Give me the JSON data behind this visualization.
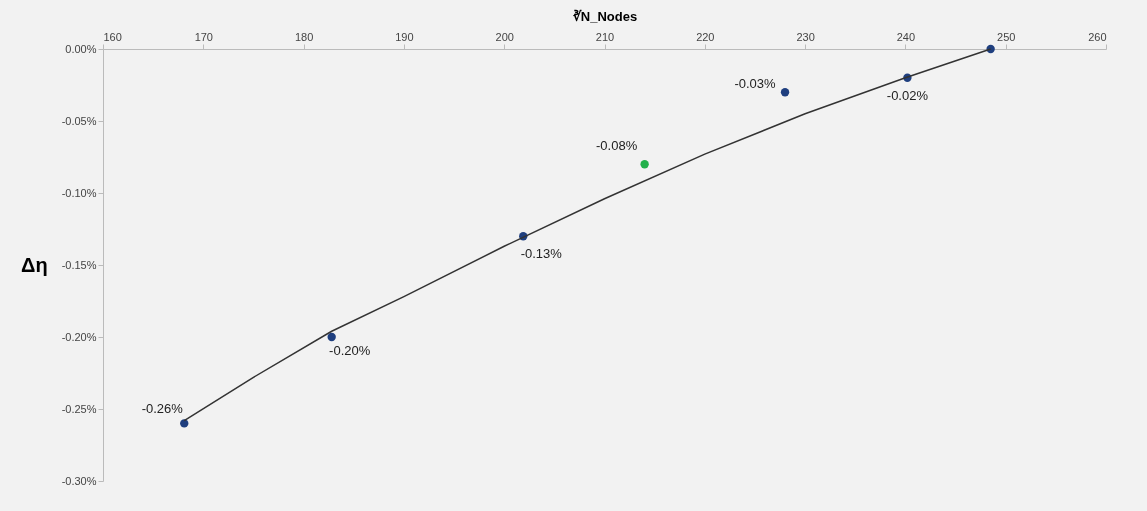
{
  "chart_data": {
    "type": "scatter",
    "xlabel": "∛N_Nodes",
    "ylabel": "Δη",
    "xlim": [
      160,
      260
    ],
    "xticks": [
      160,
      170,
      180,
      190,
      200,
      210,
      220,
      230,
      240,
      250,
      260
    ],
    "ylim": [
      -0.3,
      0
    ],
    "yticks": [
      {
        "value": 0,
        "label": "0.00%"
      },
      {
        "value": -0.05,
        "label": "-0.05%"
      },
      {
        "value": -0.1,
        "label": "-0.10%"
      },
      {
        "value": -0.15,
        "label": "-0.15%"
      },
      {
        "value": -0.2,
        "label": "-0.20%"
      },
      {
        "value": -0.25,
        "label": "-0.25%"
      },
      {
        "value": -0.3,
        "label": "-0.30%"
      }
    ],
    "grid": false,
    "series": [
      {
        "type": "scatter",
        "marker": "circle",
        "x": [
          168.1,
          182.8,
          201.9,
          214.0,
          228.0,
          240.2,
          248.5
        ],
        "values": [
          -0.26,
          -0.2,
          -0.13,
          -0.08,
          -0.03,
          -0.02,
          0
        ],
        "colors": [
          "#1f3f7f",
          "#1f3f7f",
          "#1f3f7f",
          "#22b04a",
          "#1f3f7f",
          "#1f3f7f",
          "#1f3f7f"
        ],
        "value_labels": [
          "-0.26%",
          "-0.20%",
          "-0.13%",
          "-0.08%",
          "-0.03%",
          "-0.02%",
          null
        ]
      },
      {
        "type": "line",
        "color": "#333333",
        "x": [
          168.1,
          175,
          182.8,
          190,
          200,
          210,
          220,
          230,
          240,
          248.5
        ],
        "values": [
          -0.258,
          -0.228,
          -0.196,
          -0.172,
          -0.137,
          -0.104,
          -0.073,
          -0.045,
          -0.02,
          0
        ]
      }
    ]
  }
}
